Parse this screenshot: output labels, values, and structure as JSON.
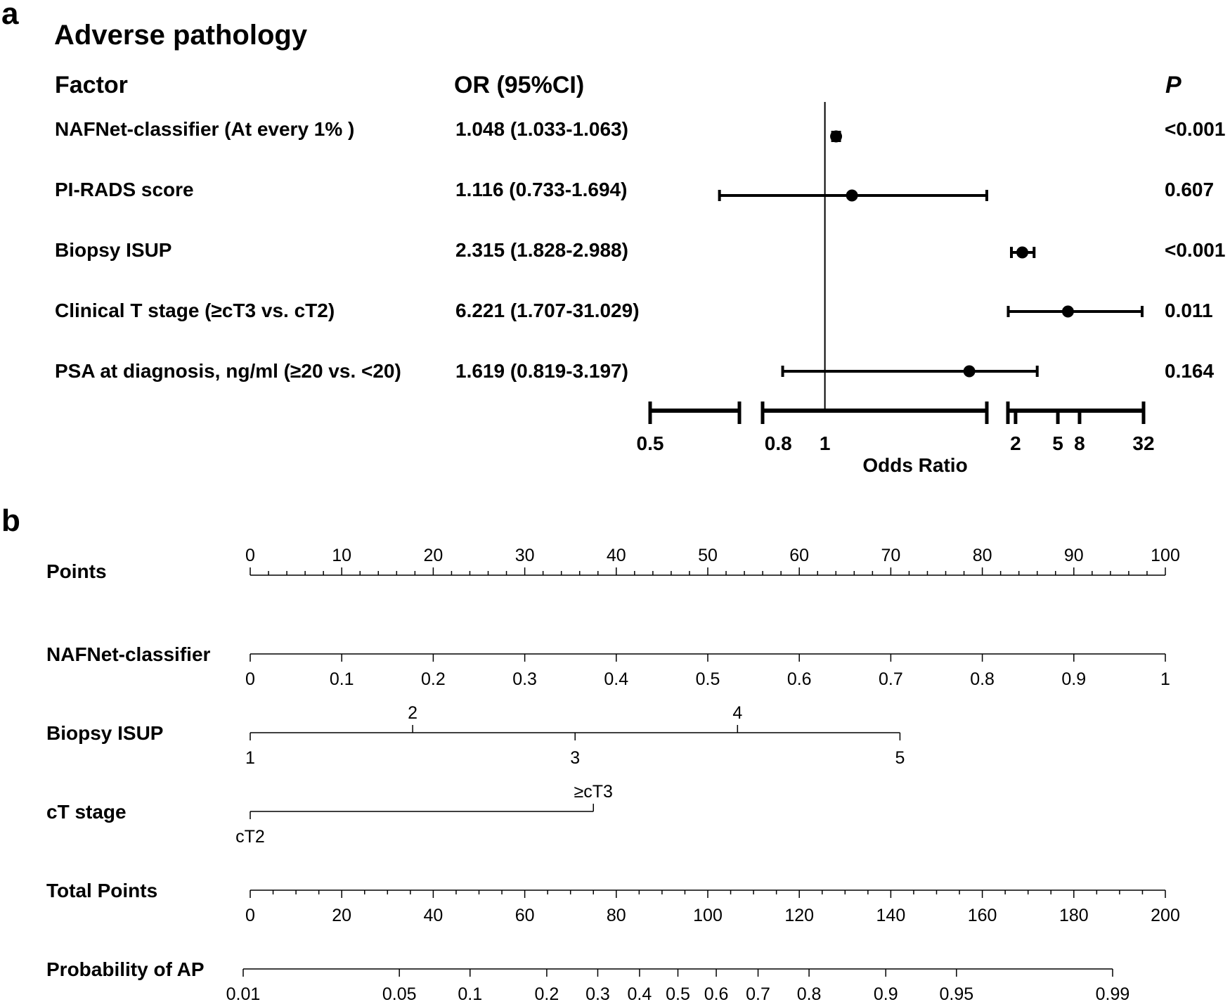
{
  "chart_data": [
    {
      "type": "forest",
      "panel_label": "a",
      "title": "Adverse pathology",
      "headers": {
        "factor": "Factor",
        "or": "OR (95%CI)",
        "p": "P"
      },
      "xlabel": "Odds Ratio",
      "x_ticks": [
        "0.5",
        "0.8",
        "1",
        "2",
        "5",
        "8",
        "32"
      ],
      "reference_value": 1,
      "rows": [
        {
          "factor": "NAFNet-classifier (At every 1% )",
          "or_text": "1.048 (1.033-1.063)",
          "p": "<0.001",
          "or": 1.048,
          "lo": 1.033,
          "hi": 1.063
        },
        {
          "factor": "PI-RADS score",
          "or_text": "1.116 (0.733-1.694)",
          "p": "0.607",
          "or": 1.116,
          "lo": 0.733,
          "hi": 1.694
        },
        {
          "factor": "Biopsy ISUP",
          "or_text": "2.315 (1.828-2.988)",
          "p": "<0.001",
          "or": 2.315,
          "lo": 1.828,
          "hi": 2.988
        },
        {
          "factor": "Clinical T stage (≥cT3 vs. cT2)",
          "or_text": "6.221 (1.707-31.029)",
          "p": "0.011",
          "or": 6.221,
          "lo": 1.707,
          "hi": 31.029
        },
        {
          "factor": "PSA at diagnosis, ng/ml (≥20 vs. <20)",
          "or_text": "1.619 (0.819-3.197)",
          "p": "0.164",
          "or": 1.619,
          "lo": 0.819,
          "hi": 3.197
        }
      ]
    },
    {
      "type": "nomogram",
      "panel_label": "b",
      "scales": [
        {
          "label": "Points",
          "range": [
            0,
            100
          ],
          "labels": [
            "0",
            "10",
            "20",
            "30",
            "40",
            "50",
            "60",
            "70",
            "80",
            "90",
            "100"
          ],
          "label_position": "above",
          "minor_ticks": true
        },
        {
          "label": "NAFNet-classifier",
          "range": [
            0,
            1
          ],
          "labels": [
            "0",
            "0.1",
            "0.2",
            "0.3",
            "0.4",
            "0.5",
            "0.6",
            "0.7",
            "0.8",
            "0.9",
            "1"
          ],
          "label_position": "below"
        },
        {
          "label": "Biopsy ISUP",
          "values": [
            {
              "label": "1",
              "points": 0,
              "position": "below"
            },
            {
              "label": "2",
              "points": 17.75,
              "position": "above"
            },
            {
              "label": "3",
              "points": 35.5,
              "position": "below"
            },
            {
              "label": "4",
              "points": 53.25,
              "position": "above"
            },
            {
              "label": "5",
              "points": 71,
              "position": "below"
            }
          ]
        },
        {
          "label": "cT stage",
          "values": [
            {
              "label": "cT2",
              "points": 0,
              "position": "below"
            },
            {
              "label": "≥cT3",
              "points": 37.5,
              "position": "above"
            }
          ]
        },
        {
          "label": "Total Points",
          "range": [
            0,
            200
          ],
          "labels": [
            "0",
            "20",
            "40",
            "60",
            "80",
            "100",
            "120",
            "140",
            "160",
            "180",
            "200"
          ],
          "label_position": "below",
          "minor_ticks": true
        },
        {
          "label": "Probability of AP",
          "labels": [
            "0.01",
            "0.05",
            "0.1",
            "0.2",
            "0.3",
            "0.4",
            "0.5",
            "0.6",
            "0.7",
            "0.8",
            "0.9",
            "0.95",
            "0.99"
          ],
          "label_position": "below"
        }
      ]
    }
  ]
}
